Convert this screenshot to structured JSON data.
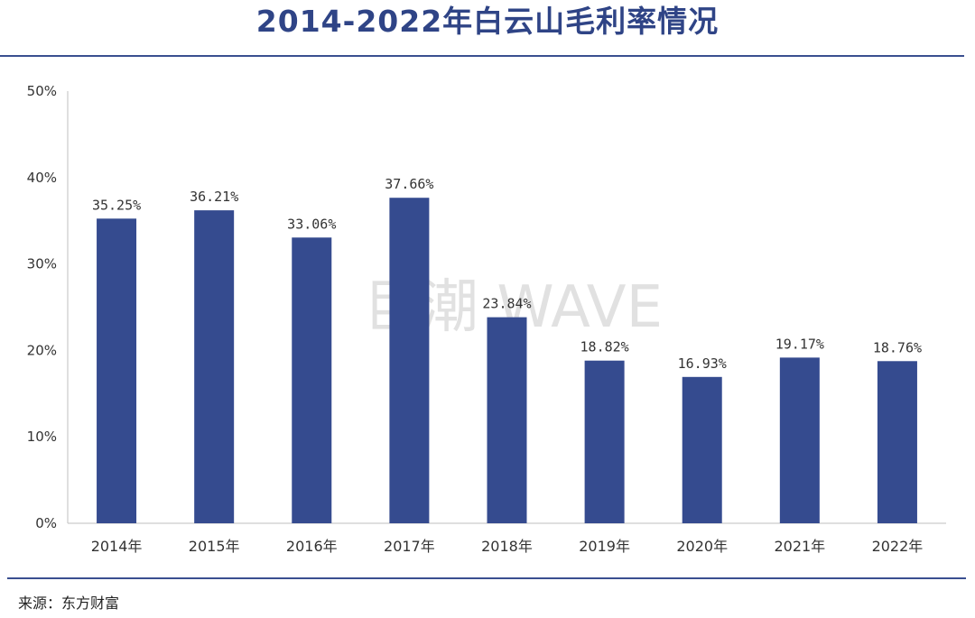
{
  "title": "2014-2022年白云山毛利率情况",
  "source": "来源：东方财富",
  "watermark": "巨潮 WAVE",
  "colors": {
    "bar": "#354b8f",
    "accent": "#2f4486"
  },
  "chart_data": {
    "type": "bar",
    "title": "2014-2022年白云山毛利率情况",
    "categories": [
      "2014年",
      "2015年",
      "2016年",
      "2017年",
      "2018年",
      "2019年",
      "2020年",
      "2021年",
      "2022年"
    ],
    "values": [
      35.25,
      36.21,
      33.06,
      37.66,
      23.84,
      18.82,
      16.93,
      19.17,
      18.76
    ],
    "value_labels": [
      "35.25%",
      "36.21%",
      "33.06%",
      "37.66%",
      "23.84%",
      "18.82%",
      "16.93%",
      "19.17%",
      "18.76%"
    ],
    "ylim": [
      0,
      50
    ],
    "yticks": [
      "0%",
      "10%",
      "20%",
      "30%",
      "40%",
      "50%"
    ],
    "xlabel": "",
    "ylabel": "",
    "grid": false,
    "legend": "none"
  }
}
